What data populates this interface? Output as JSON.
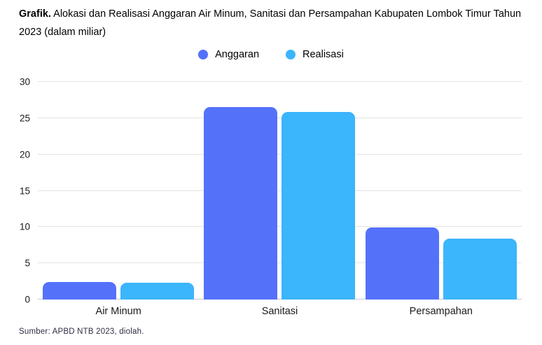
{
  "title": {
    "prefix": "Grafik.",
    "rest": " Alokasi dan Realisasi Anggaran Air Minum, Sanitasi dan Persampahan Kabupaten Lombok Timur Tahun 2023 (dalam miliar)"
  },
  "source": "Sumber: APBD NTB 2023, diolah.",
  "colors": {
    "anggaran": "#5471FA",
    "realisasi": "#3BB5FC",
    "gridline": "#e3e3e3",
    "baseline": "#c9c9c9"
  },
  "chart_data": {
    "type": "bar",
    "title": "Grafik. Alokasi dan Realisasi Anggaran Air Minum, Sanitasi dan Persampahan Kabupaten Lombok Timur Tahun 2023 (dalam miliar)",
    "categories": [
      "Air Minum",
      "Sanitasi",
      "Persampahan"
    ],
    "series": [
      {
        "name": "Anggaran",
        "color": "#5471FA",
        "values": [
          2.4,
          26.5,
          9.9
        ]
      },
      {
        "name": "Realisasi",
        "color": "#3BB5FC",
        "values": [
          2.3,
          25.9,
          8.4
        ]
      }
    ],
    "xlabel": "",
    "ylabel": "",
    "ylim": [
      0,
      30
    ],
    "yticks": [
      0,
      5,
      10,
      15,
      20,
      25,
      30
    ],
    "grid": true,
    "legend_position": "top-center",
    "bar_corner_radius": "rounded-top",
    "source_note": "Sumber: APBD NTB 2023, diolah."
  }
}
